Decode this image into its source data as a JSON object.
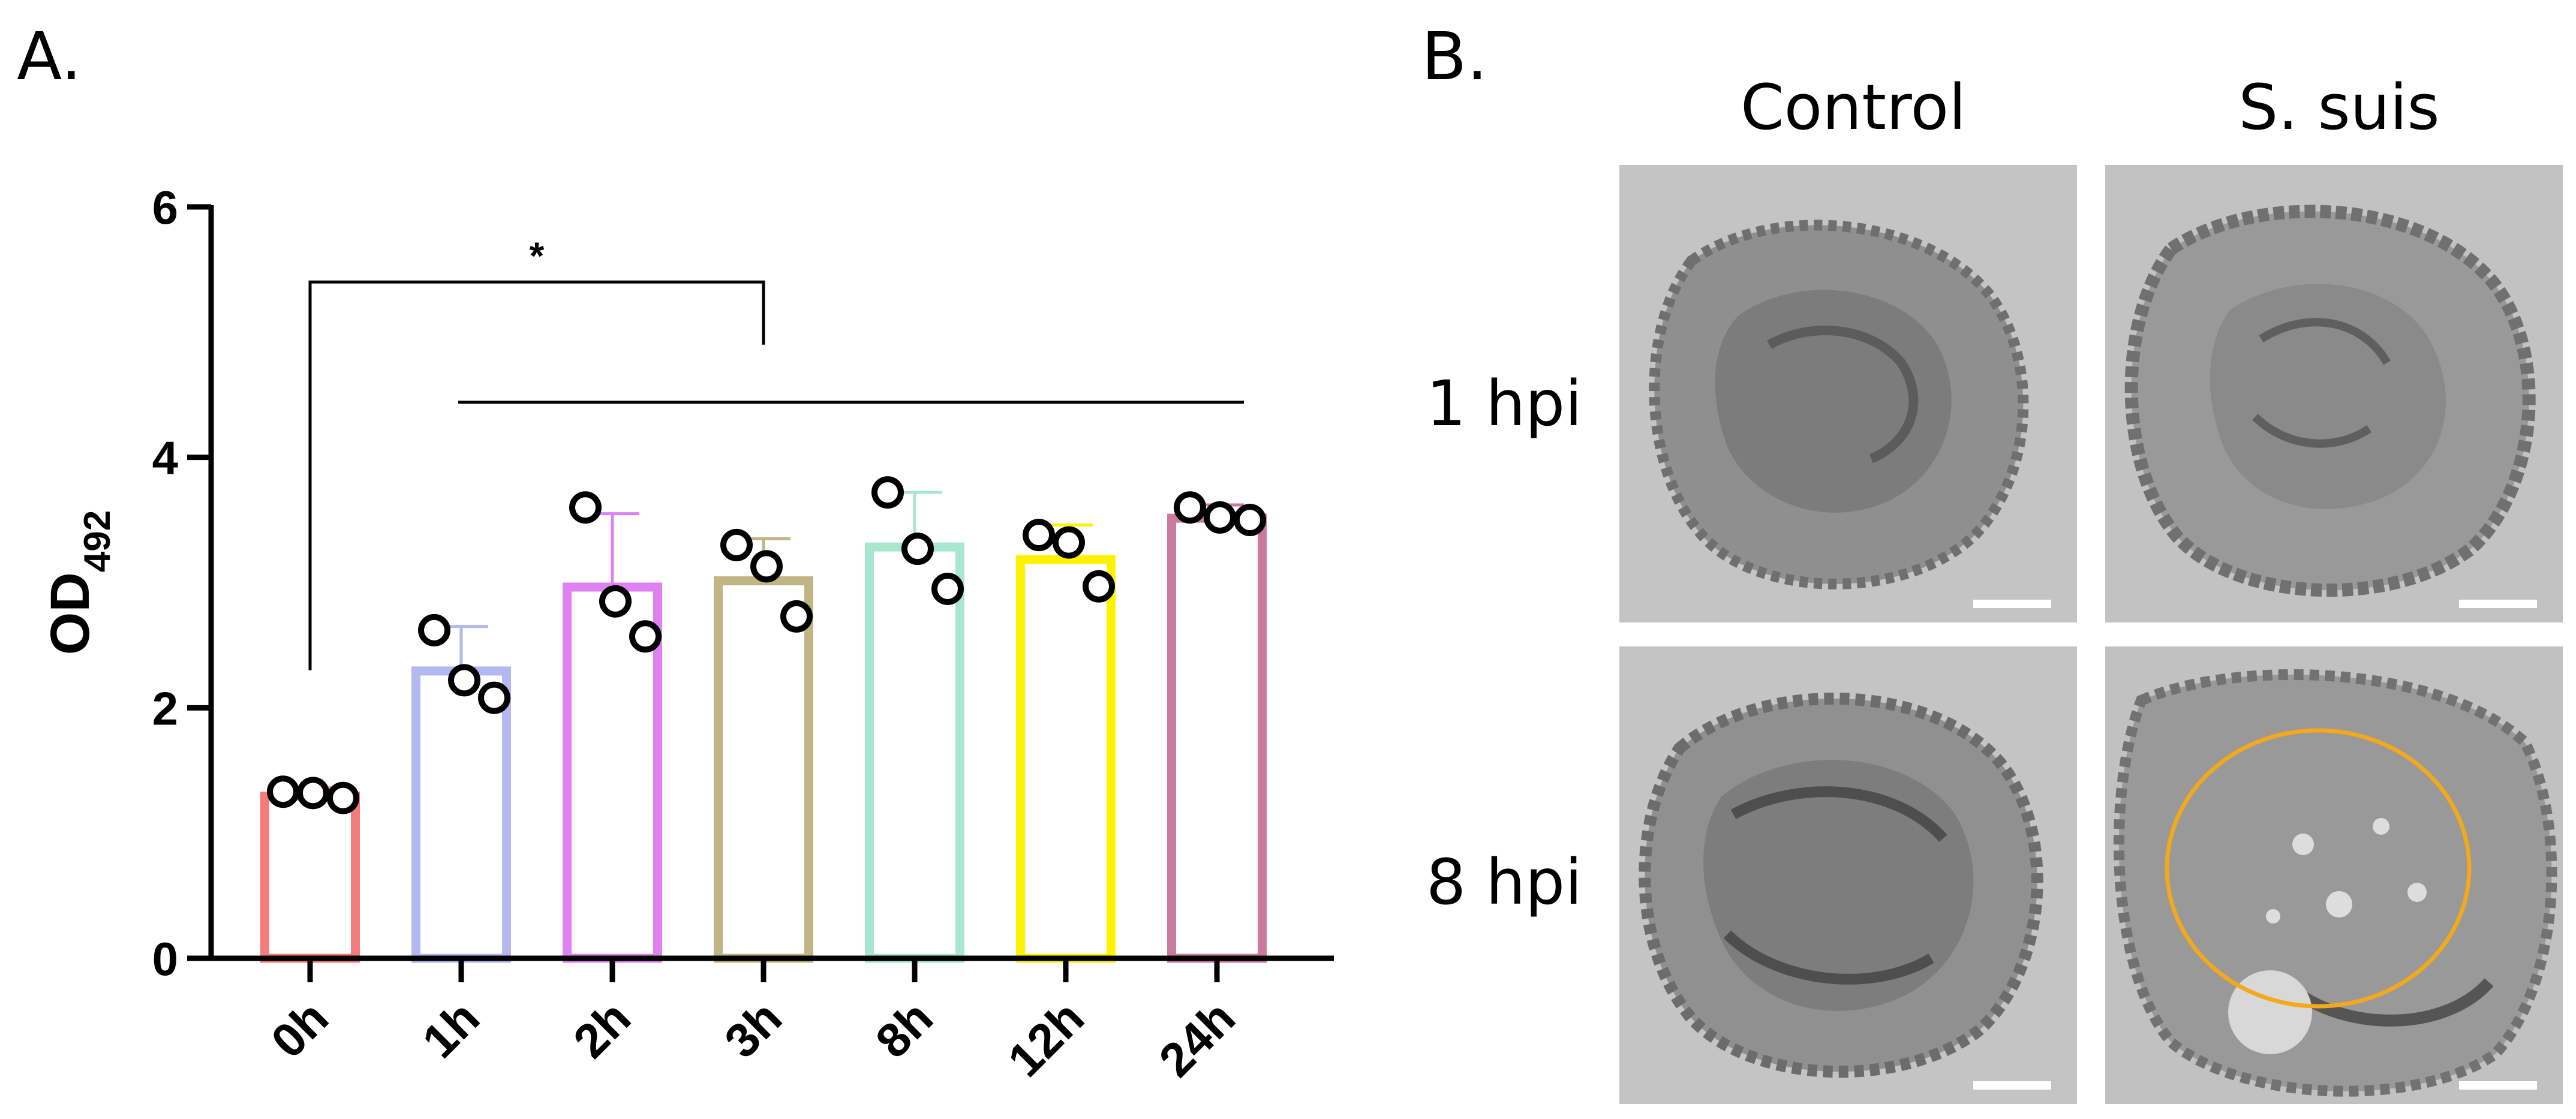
{
  "panels": {
    "a_label": "A.",
    "b_label": "B."
  },
  "chart_data": {
    "type": "bar",
    "categories": [
      "0h",
      "1h",
      "2h",
      "3h",
      "8h",
      "12h",
      "24h"
    ],
    "values": [
      1.33,
      2.33,
      3.0,
      3.05,
      3.32,
      3.22,
      3.55
    ],
    "error_upper": [
      1.36,
      2.65,
      3.55,
      3.35,
      3.72,
      3.46,
      3.62
    ],
    "points": [
      [
        1.33,
        1.32,
        1.28
      ],
      [
        2.62,
        2.22,
        2.08
      ],
      [
        3.6,
        2.85,
        2.57
      ],
      [
        3.3,
        3.13,
        2.73
      ],
      [
        3.72,
        3.27,
        2.95
      ],
      [
        3.38,
        3.32,
        2.97
      ],
      [
        3.6,
        3.52,
        3.5
      ]
    ],
    "colors": [
      "#f47c7c",
      "#b3b8f0",
      "#de82f2",
      "#c2b584",
      "#a9e6cf",
      "#fff200",
      "#c97a9e"
    ],
    "ylabel_main": "OD",
    "ylabel_sub": "492",
    "ylim": [
      0,
      6
    ],
    "yticks": [
      0,
      2,
      4,
      6
    ],
    "significance": [
      {
        "from": "0h",
        "to": "3h",
        "label": "*"
      }
    ],
    "bracket_line": {
      "from": "1h",
      "to": "24h"
    },
    "grid": false
  },
  "em_panel": {
    "columns": [
      "Control",
      "S. suis"
    ],
    "rows": [
      "1 hpi",
      "8 hpi"
    ],
    "highlight_color": "#f2a91c"
  }
}
